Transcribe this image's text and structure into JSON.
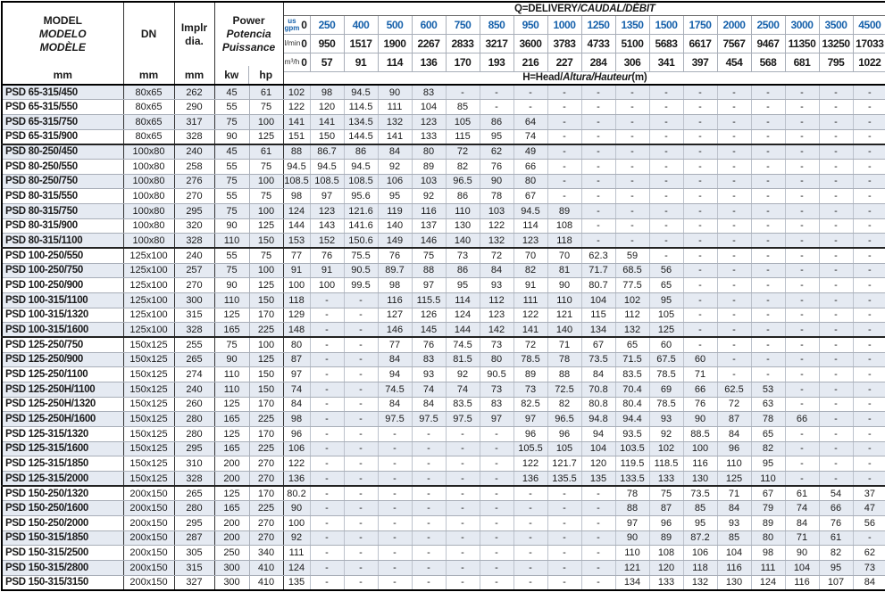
{
  "colors": {
    "accent_blue": "#1661ab",
    "stripe": "#e5eaf2",
    "grid": "#a8aeb8",
    "grid_light": "#bcc2cc",
    "dark": "#1a1a1a"
  },
  "header": {
    "model": {
      "line1": "MODEL",
      "line2": "MODELO",
      "line3": "MODÈLE",
      "unit": "mm"
    },
    "dn": {
      "label": "DN",
      "unit": "mm"
    },
    "impeller": {
      "line1": "Implr",
      "line2": "dia.",
      "unit": "mm"
    },
    "power": {
      "line1": "Power",
      "line2": "Potencia",
      "line3": "Puissance",
      "unit1": "kw",
      "unit2": "hp"
    },
    "delivery": {
      "normal": "Q=DELIVERY",
      "italic": "/CAUDAL/DÉBIT"
    },
    "head": {
      "p1": "H=Head/",
      "p2": "Altura/Hauteur",
      "p3": "(m)"
    },
    "unit_rows": [
      {
        "key": "gpm",
        "label_lines": [
          "us",
          "gpm"
        ],
        "values": [
          "0",
          "250",
          "400",
          "500",
          "600",
          "750",
          "850",
          "950",
          "1000",
          "1250",
          "1350",
          "1500",
          "1750",
          "2000",
          "2500",
          "3000",
          "3500",
          "4500"
        ]
      },
      {
        "key": "lmin",
        "label_lines": [
          "l/min"
        ],
        "values": [
          "0",
          "950",
          "1517",
          "1900",
          "2267",
          "2833",
          "3217",
          "3600",
          "3783",
          "4733",
          "5100",
          "5683",
          "6617",
          "7567",
          "9467",
          "11350",
          "13250",
          "17033"
        ]
      },
      {
        "key": "m3h",
        "label_lines": [
          "m³/h"
        ],
        "values": [
          "0",
          "57",
          "91",
          "114",
          "136",
          "170",
          "193",
          "216",
          "227",
          "284",
          "306",
          "341",
          "397",
          "454",
          "568",
          "681",
          "795",
          "1022"
        ]
      }
    ]
  },
  "rows": [
    {
      "model": "PSD 65-315/450",
      "dn": "80x65",
      "dia": "262",
      "kw": "45",
      "hp": "61",
      "head": [
        "102",
        "98",
        "94.5",
        "90",
        "83",
        "-",
        "-",
        "-",
        "-",
        "-",
        "-",
        "-",
        "-",
        "-",
        "-",
        "-",
        "-",
        "-"
      ]
    },
    {
      "model": "PSD 65-315/550",
      "dn": "80x65",
      "dia": "290",
      "kw": "55",
      "hp": "75",
      "head": [
        "122",
        "120",
        "114.5",
        "111",
        "104",
        "85",
        "-",
        "-",
        "-",
        "-",
        "-",
        "-",
        "-",
        "-",
        "-",
        "-",
        "-",
        "-"
      ]
    },
    {
      "model": "PSD 65-315/750",
      "dn": "80x65",
      "dia": "317",
      "kw": "75",
      "hp": "100",
      "head": [
        "141",
        "141",
        "134.5",
        "132",
        "123",
        "105",
        "86",
        "64",
        "-",
        "-",
        "-",
        "-",
        "-",
        "-",
        "-",
        "-",
        "-",
        "-"
      ]
    },
    {
      "model": "PSD 65-315/900",
      "dn": "80x65",
      "dia": "328",
      "kw": "90",
      "hp": "125",
      "head": [
        "151",
        "150",
        "144.5",
        "141",
        "133",
        "115",
        "95",
        "74",
        "-",
        "-",
        "-",
        "-",
        "-",
        "-",
        "-",
        "-",
        "-",
        "-"
      ]
    },
    {
      "model": "PSD 80-250/450",
      "dn": "100x80",
      "dia": "240",
      "kw": "45",
      "hp": "61",
      "head": [
        "88",
        "86.7",
        "86",
        "84",
        "80",
        "72",
        "62",
        "49",
        "-",
        "-",
        "-",
        "-",
        "-",
        "-",
        "-",
        "-",
        "-",
        "-"
      ]
    },
    {
      "model": "PSD 80-250/550",
      "dn": "100x80",
      "dia": "258",
      "kw": "55",
      "hp": "75",
      "head": [
        "94.5",
        "94.5",
        "94.5",
        "92",
        "89",
        "82",
        "76",
        "66",
        "-",
        "-",
        "-",
        "-",
        "-",
        "-",
        "-",
        "-",
        "-",
        "-"
      ]
    },
    {
      "model": "PSD 80-250/750",
      "dn": "100x80",
      "dia": "276",
      "kw": "75",
      "hp": "100",
      "head": [
        "108.5",
        "108.5",
        "108.5",
        "106",
        "103",
        "96.5",
        "90",
        "80",
        "-",
        "-",
        "-",
        "-",
        "-",
        "-",
        "-",
        "-",
        "-",
        "-"
      ]
    },
    {
      "model": "PSD 80-315/550",
      "dn": "100x80",
      "dia": "270",
      "kw": "55",
      "hp": "75",
      "head": [
        "98",
        "97",
        "95.6",
        "95",
        "92",
        "86",
        "78",
        "67",
        "-",
        "-",
        "-",
        "-",
        "-",
        "-",
        "-",
        "-",
        "-",
        "-"
      ]
    },
    {
      "model": "PSD 80-315/750",
      "dn": "100x80",
      "dia": "295",
      "kw": "75",
      "hp": "100",
      "head": [
        "124",
        "123",
        "121.6",
        "119",
        "116",
        "110",
        "103",
        "94.5",
        "89",
        "-",
        "-",
        "-",
        "-",
        "-",
        "-",
        "-",
        "-",
        "-"
      ]
    },
    {
      "model": "PSD 80-315/900",
      "dn": "100x80",
      "dia": "320",
      "kw": "90",
      "hp": "125",
      "head": [
        "144",
        "143",
        "141.6",
        "140",
        "137",
        "130",
        "122",
        "114",
        "108",
        "-",
        "-",
        "-",
        "-",
        "-",
        "-",
        "-",
        "-",
        "-"
      ]
    },
    {
      "model": "PSD 80-315/1100",
      "dn": "100x80",
      "dia": "328",
      "kw": "110",
      "hp": "150",
      "head": [
        "153",
        "152",
        "150.6",
        "149",
        "146",
        "140",
        "132",
        "123",
        "118",
        "-",
        "-",
        "-",
        "-",
        "-",
        "-",
        "-",
        "-",
        "-"
      ]
    },
    {
      "model": "PSD 100-250/550",
      "dn": "125x100",
      "dia": "240",
      "kw": "55",
      "hp": "75",
      "head": [
        "77",
        "76",
        "75.5",
        "76",
        "75",
        "73",
        "72",
        "70",
        "70",
        "62.3",
        "59",
        "-",
        "-",
        "-",
        "-",
        "-",
        "-",
        "-"
      ]
    },
    {
      "model": "PSD 100-250/750",
      "dn": "125x100",
      "dia": "257",
      "kw": "75",
      "hp": "100",
      "head": [
        "91",
        "91",
        "90.5",
        "89.7",
        "88",
        "86",
        "84",
        "82",
        "81",
        "71.7",
        "68.5",
        "56",
        "-",
        "-",
        "-",
        "-",
        "-",
        "-"
      ]
    },
    {
      "model": "PSD 100-250/900",
      "dn": "125x100",
      "dia": "270",
      "kw": "90",
      "hp": "125",
      "head": [
        "100",
        "100",
        "99.5",
        "98",
        "97",
        "95",
        "93",
        "91",
        "90",
        "80.7",
        "77.5",
        "65",
        "-",
        "-",
        "-",
        "-",
        "-",
        "-"
      ]
    },
    {
      "model": "PSD 100-315/1100",
      "dn": "125x100",
      "dia": "300",
      "kw": "110",
      "hp": "150",
      "head": [
        "118",
        "-",
        "-",
        "116",
        "115.5",
        "114",
        "112",
        "111",
        "110",
        "104",
        "102",
        "95",
        "-",
        "-",
        "-",
        "-",
        "-",
        "-"
      ]
    },
    {
      "model": "PSD 100-315/1320",
      "dn": "125x100",
      "dia": "315",
      "kw": "125",
      "hp": "170",
      "head": [
        "129",
        "-",
        "-",
        "127",
        "126",
        "124",
        "123",
        "122",
        "121",
        "115",
        "112",
        "105",
        "-",
        "-",
        "-",
        "-",
        "-",
        "-"
      ]
    },
    {
      "model": "PSD 100-315/1600",
      "dn": "125x100",
      "dia": "328",
      "kw": "165",
      "hp": "225",
      "head": [
        "148",
        "-",
        "-",
        "146",
        "145",
        "144",
        "142",
        "141",
        "140",
        "134",
        "132",
        "125",
        "-",
        "-",
        "-",
        "-",
        "-",
        "-"
      ]
    },
    {
      "model": "PSD 125-250/750",
      "dn": "150x125",
      "dia": "255",
      "kw": "75",
      "hp": "100",
      "head": [
        "80",
        "-",
        "-",
        "77",
        "76",
        "74.5",
        "73",
        "72",
        "71",
        "67",
        "65",
        "60",
        "-",
        "-",
        "-",
        "-",
        "-",
        "-"
      ]
    },
    {
      "model": "PSD 125-250/900",
      "dn": "150x125",
      "dia": "265",
      "kw": "90",
      "hp": "125",
      "head": [
        "87",
        "-",
        "-",
        "84",
        "83",
        "81.5",
        "80",
        "78.5",
        "78",
        "73.5",
        "71.5",
        "67.5",
        "60",
        "-",
        "-",
        "-",
        "-",
        "-"
      ]
    },
    {
      "model": "PSD 125-250/1100",
      "dn": "150x125",
      "dia": "274",
      "kw": "110",
      "hp": "150",
      "head": [
        "97",
        "-",
        "-",
        "94",
        "93",
        "92",
        "90.5",
        "89",
        "88",
        "84",
        "83.5",
        "78.5",
        "71",
        "-",
        "-",
        "-",
        "-",
        "-"
      ]
    },
    {
      "model": "PSD 125-250H/1100",
      "dn": "150x125",
      "dia": "240",
      "kw": "110",
      "hp": "150",
      "head": [
        "74",
        "-",
        "-",
        "74.5",
        "74",
        "74",
        "73",
        "73",
        "72.5",
        "70.8",
        "70.4",
        "69",
        "66",
        "62.5",
        "53",
        "-",
        "-",
        "-"
      ]
    },
    {
      "model": "PSD 125-250H/1320",
      "dn": "150x125",
      "dia": "260",
      "kw": "125",
      "hp": "170",
      "head": [
        "84",
        "-",
        "-",
        "84",
        "84",
        "83.5",
        "83",
        "82.5",
        "82",
        "80.8",
        "80.4",
        "78.5",
        "76",
        "72",
        "63",
        "-",
        "-",
        "-"
      ]
    },
    {
      "model": "PSD 125-250H/1600",
      "dn": "150x125",
      "dia": "280",
      "kw": "165",
      "hp": "225",
      "head": [
        "98",
        "-",
        "-",
        "97.5",
        "97.5",
        "97.5",
        "97",
        "97",
        "96.5",
        "94.8",
        "94.4",
        "93",
        "90",
        "87",
        "78",
        "66",
        "-",
        "-"
      ]
    },
    {
      "model": "PSD 125-315/1320",
      "dn": "150x125",
      "dia": "280",
      "kw": "125",
      "hp": "170",
      "head": [
        "96",
        "-",
        "-",
        "-",
        "-",
        "-",
        "-",
        "96",
        "96",
        "94",
        "93.5",
        "92",
        "88.5",
        "84",
        "65",
        "-",
        "-",
        "-"
      ]
    },
    {
      "model": "PSD 125-315/1600",
      "dn": "150x125",
      "dia": "295",
      "kw": "165",
      "hp": "225",
      "head": [
        "106",
        "-",
        "-",
        "-",
        "-",
        "-",
        "-",
        "105.5",
        "105",
        "104",
        "103.5",
        "102",
        "100",
        "96",
        "82",
        "-",
        "-",
        "-"
      ]
    },
    {
      "model": "PSD 125-315/1850",
      "dn": "150x125",
      "dia": "310",
      "kw": "200",
      "hp": "270",
      "head": [
        "122",
        "-",
        "-",
        "-",
        "-",
        "-",
        "-",
        "122",
        "121.7",
        "120",
        "119.5",
        "118.5",
        "116",
        "110",
        "95",
        "-",
        "-",
        "-"
      ]
    },
    {
      "model": "PSD 125-315/2000",
      "dn": "150x125",
      "dia": "328",
      "kw": "200",
      "hp": "270",
      "head": [
        "136",
        "-",
        "-",
        "-",
        "-",
        "-",
        "-",
        "136",
        "135.5",
        "135",
        "133.5",
        "133",
        "130",
        "125",
        "110",
        "-",
        "-",
        "-"
      ]
    },
    {
      "model": "PSD 150-250/1320",
      "dn": "200x150",
      "dia": "265",
      "kw": "125",
      "hp": "170",
      "head": [
        "80.2",
        "-",
        "-",
        "-",
        "-",
        "-",
        "-",
        "-",
        "-",
        "-",
        "78",
        "75",
        "73.5",
        "71",
        "67",
        "61",
        "54",
        "37"
      ]
    },
    {
      "model": "PSD 150-250/1600",
      "dn": "200x150",
      "dia": "280",
      "kw": "165",
      "hp": "225",
      "head": [
        "90",
        "-",
        "-",
        "-",
        "-",
        "-",
        "-",
        "-",
        "-",
        "-",
        "88",
        "87",
        "85",
        "84",
        "79",
        "74",
        "66",
        "47"
      ]
    },
    {
      "model": "PSD 150-250/2000",
      "dn": "200x150",
      "dia": "295",
      "kw": "200",
      "hp": "270",
      "head": [
        "100",
        "-",
        "-",
        "-",
        "-",
        "-",
        "-",
        "-",
        "-",
        "-",
        "97",
        "96",
        "95",
        "93",
        "89",
        "84",
        "76",
        "56"
      ]
    },
    {
      "model": "PSD 150-315/1850",
      "dn": "200x150",
      "dia": "287",
      "kw": "200",
      "hp": "270",
      "head": [
        "92",
        "-",
        "-",
        "-",
        "-",
        "-",
        "-",
        "-",
        "-",
        "-",
        "90",
        "89",
        "87.2",
        "85",
        "80",
        "71",
        "61",
        "-"
      ]
    },
    {
      "model": "PSD 150-315/2500",
      "dn": "200x150",
      "dia": "305",
      "kw": "250",
      "hp": "340",
      "head": [
        "111",
        "-",
        "-",
        "-",
        "-",
        "-",
        "-",
        "-",
        "-",
        "-",
        "110",
        "108",
        "106",
        "104",
        "98",
        "90",
        "82",
        "62"
      ]
    },
    {
      "model": "PSD 150-315/2800",
      "dn": "200x150",
      "dia": "315",
      "kw": "300",
      "hp": "410",
      "head": [
        "124",
        "-",
        "-",
        "-",
        "-",
        "-",
        "-",
        "-",
        "-",
        "-",
        "121",
        "120",
        "118",
        "116",
        "111",
        "104",
        "95",
        "73"
      ]
    },
    {
      "model": "PSD 150-315/3150",
      "dn": "200x150",
      "dia": "327",
      "kw": "300",
      "hp": "410",
      "head": [
        "135",
        "-",
        "-",
        "-",
        "-",
        "-",
        "-",
        "-",
        "-",
        "-",
        "134",
        "133",
        "132",
        "130",
        "124",
        "116",
        "107",
        "84"
      ]
    }
  ]
}
